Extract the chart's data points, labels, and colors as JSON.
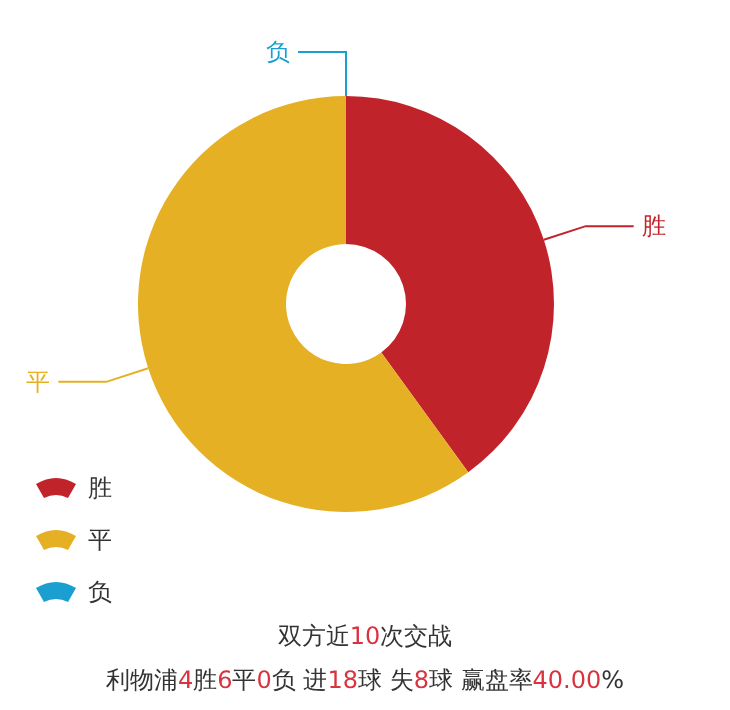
{
  "chart_data": {
    "type": "donut",
    "categories": [
      "胜",
      "平",
      "负"
    ],
    "values": [
      40,
      60,
      0
    ],
    "colors": [
      "#c1232b",
      "#e5b023",
      "#1a9fd0"
    ],
    "legend": "bottom left",
    "annotations": [
      "双方近10次交战",
      "利物浦4胜6平0负 进18球 失8球 赢盘率40.00%"
    ]
  }
}
